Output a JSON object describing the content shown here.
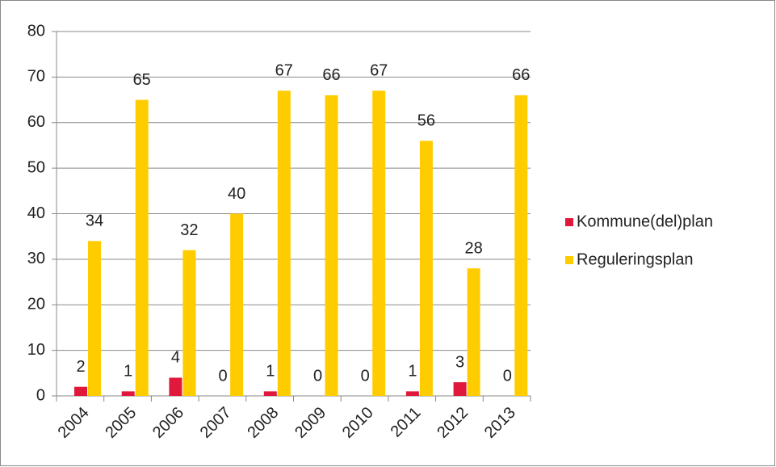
{
  "chart_data": {
    "type": "bar",
    "categories": [
      "2004",
      "2005",
      "2006",
      "2007",
      "2008",
      "2009",
      "2010",
      "2011",
      "2012",
      "2013"
    ],
    "series": [
      {
        "name": "Kommune(del)plan",
        "color": "#e0193c",
        "values": [
          2,
          1,
          4,
          0,
          1,
          0,
          0,
          1,
          3,
          0
        ]
      },
      {
        "name": "Reguleringsplan",
        "color": "#ffcc00",
        "values": [
          34,
          65,
          32,
          40,
          67,
          66,
          67,
          56,
          28,
          66
        ]
      }
    ],
    "ylim": [
      0,
      80
    ],
    "yticks": [
      0,
      10,
      20,
      30,
      40,
      50,
      60,
      70,
      80
    ],
    "grid": true,
    "legend": "right"
  }
}
